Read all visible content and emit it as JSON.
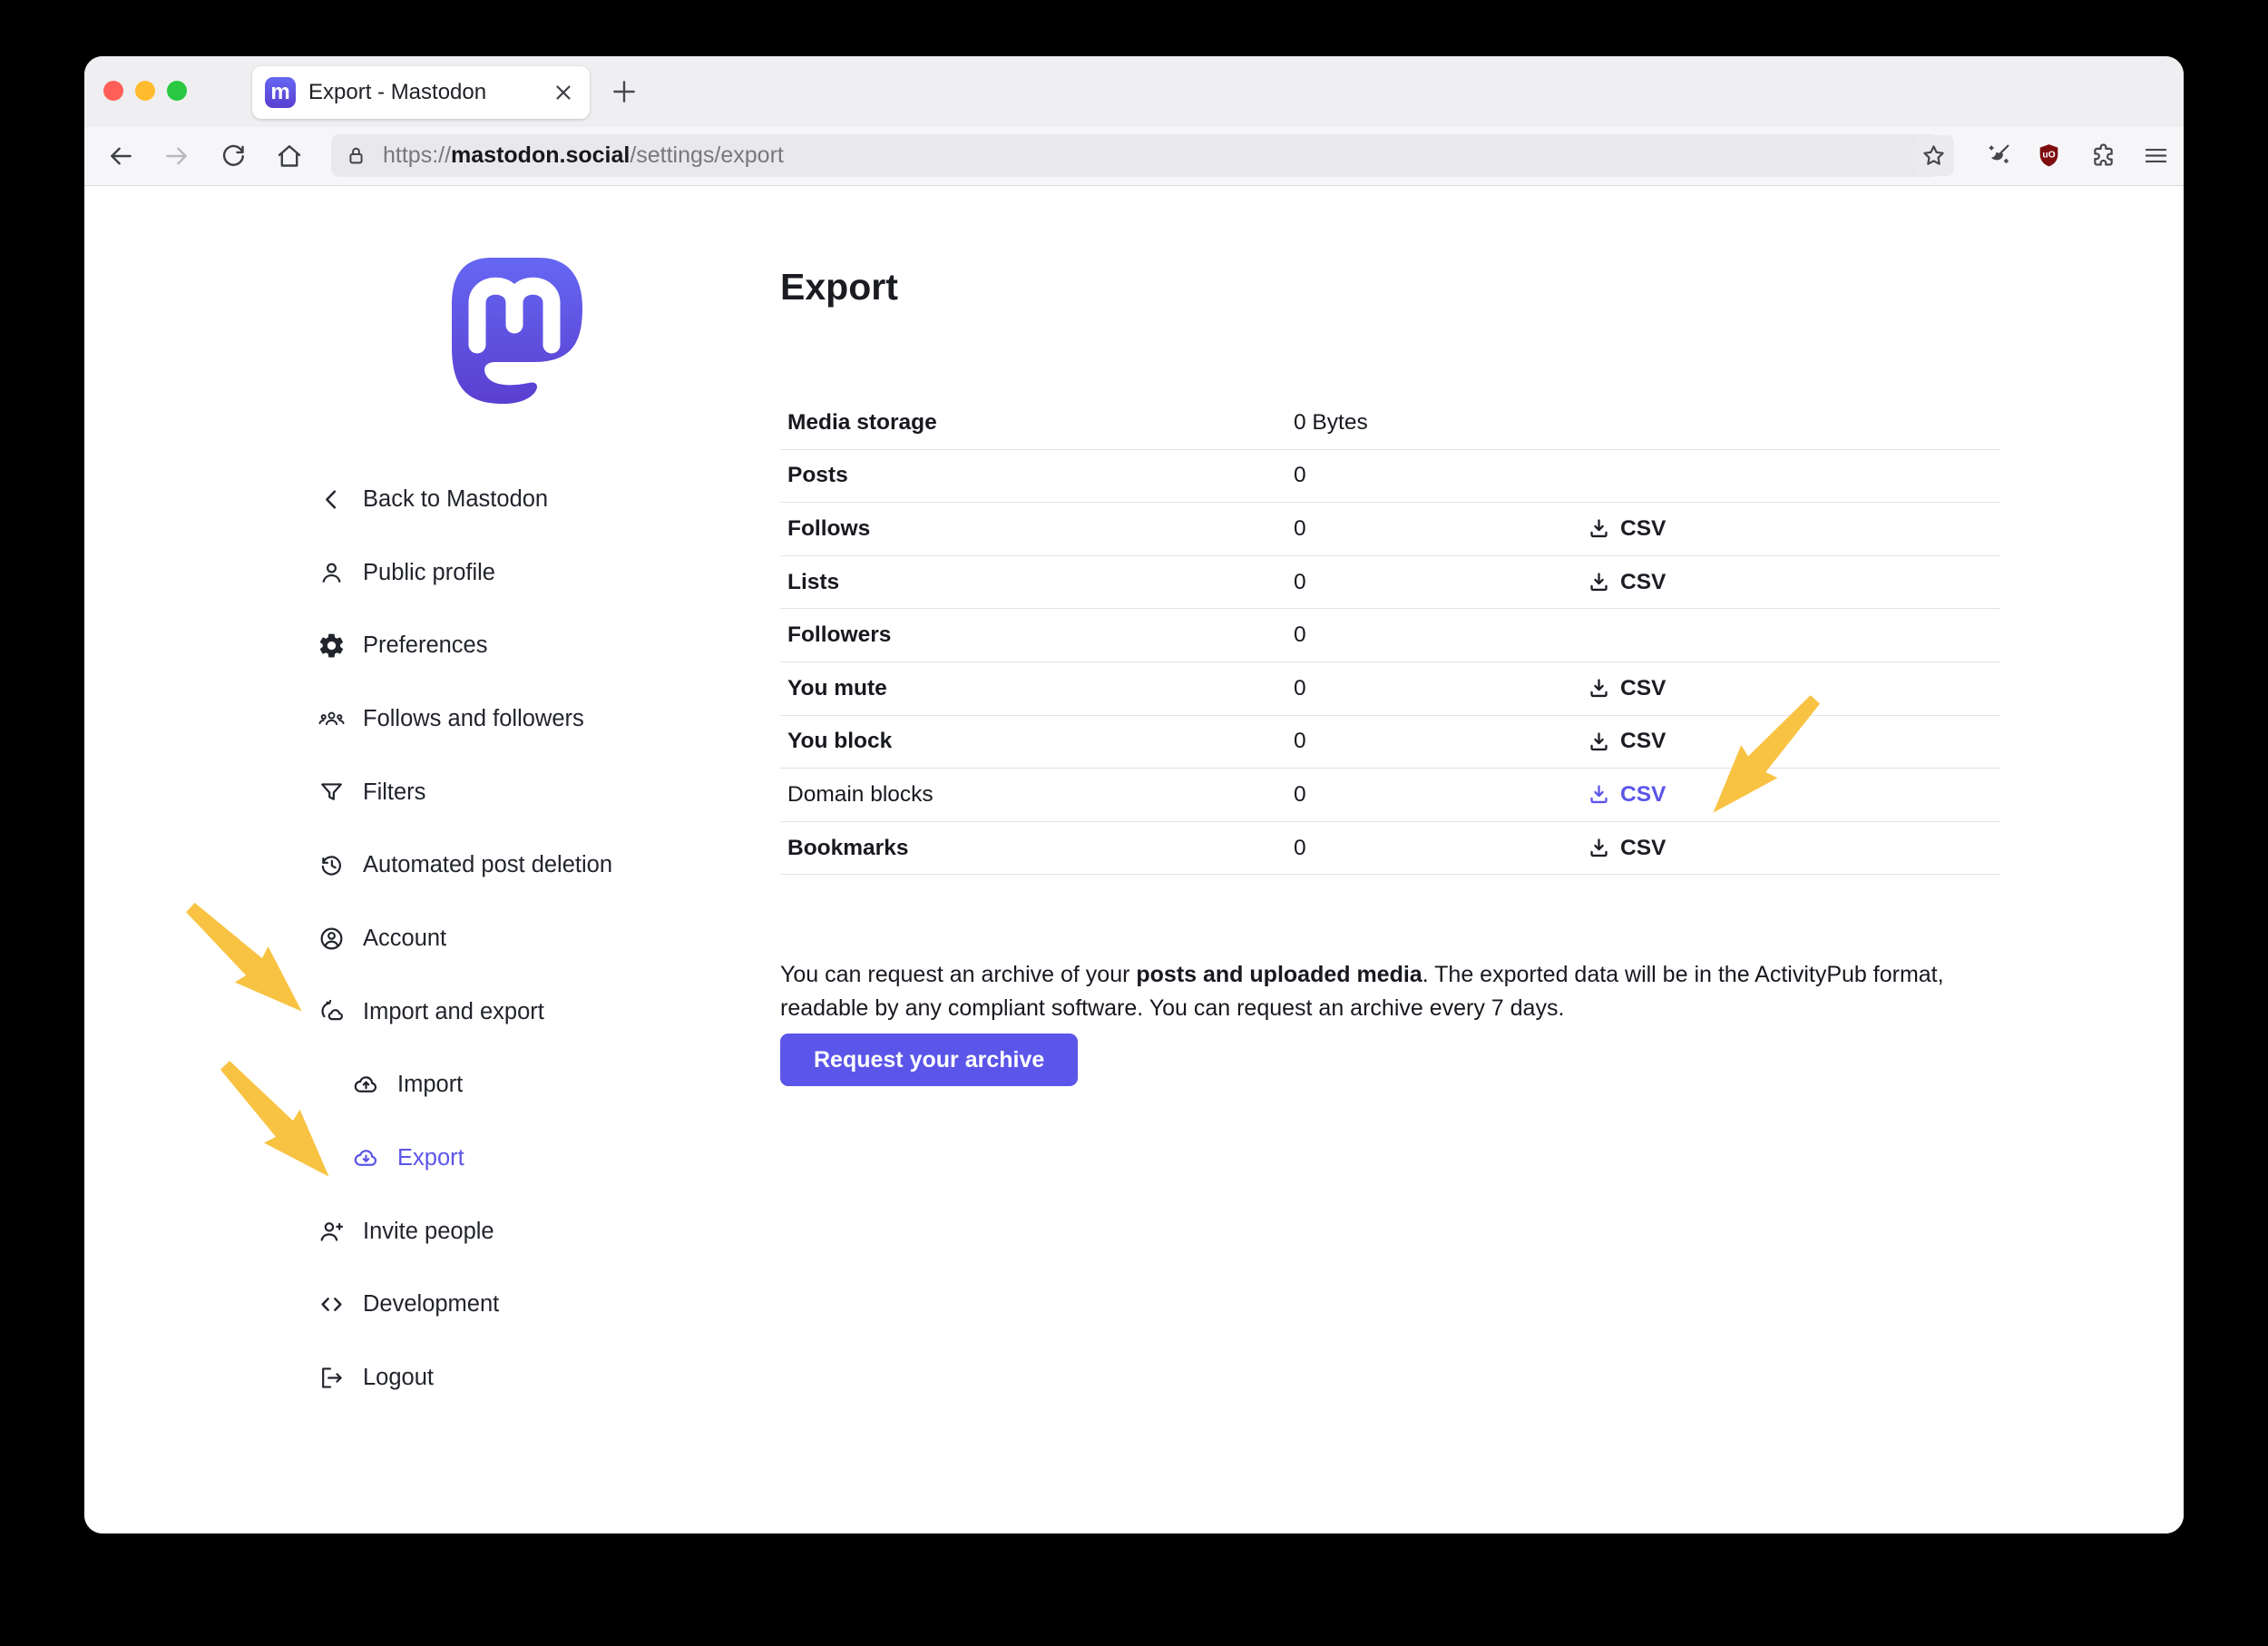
{
  "colors": {
    "accent": "#5b55e9",
    "arrow": "#f8c342",
    "logo_top": "#6567f2",
    "logo_bottom": "#5a3fd1",
    "ublock_red": "#7e0d10",
    "traffic_red": "#ff5f57",
    "traffic_yellow": "#febc2e",
    "traffic_green": "#28c840"
  },
  "browser": {
    "tab_title": "Export - Mastodon",
    "url": {
      "protocol": "https://",
      "domain": "mastodon.social",
      "path": "/settings/export"
    }
  },
  "sidebar": {
    "items": [
      {
        "label": "Back to Mastodon",
        "icon": "chevron-left",
        "name": "back-to-mastodon"
      },
      {
        "label": "Public profile",
        "icon": "person",
        "name": "public-profile"
      },
      {
        "label": "Preferences",
        "icon": "gear",
        "name": "preferences"
      },
      {
        "label": "Follows and followers",
        "icon": "people",
        "name": "follows-and-followers"
      },
      {
        "label": "Filters",
        "icon": "funnel",
        "name": "filters"
      },
      {
        "label": "Automated post deletion",
        "icon": "history",
        "name": "automated-post-deletion"
      },
      {
        "label": "Account",
        "icon": "account-circle",
        "name": "account"
      },
      {
        "label": "Import and export",
        "icon": "import-export",
        "name": "import-and-export"
      },
      {
        "label": "Import",
        "icon": "cloud-upload",
        "name": "import",
        "sub": true
      },
      {
        "label": "Export",
        "icon": "cloud-download",
        "name": "export",
        "sub": true,
        "active": true
      },
      {
        "label": "Invite people",
        "icon": "person-add",
        "name": "invite-people"
      },
      {
        "label": "Development",
        "icon": "code",
        "name": "development"
      },
      {
        "label": "Logout",
        "icon": "logout",
        "name": "logout"
      }
    ]
  },
  "main": {
    "title": "Export",
    "csv_label": "CSV",
    "table": [
      {
        "label": "Media storage",
        "value": "0 Bytes",
        "csv": false
      },
      {
        "label": "Posts",
        "value": "0",
        "csv": false
      },
      {
        "label": "Follows",
        "value": "0",
        "csv": true
      },
      {
        "label": "Lists",
        "value": "0",
        "csv": true
      },
      {
        "label": "Followers",
        "value": "0",
        "csv": false
      },
      {
        "label": "You mute",
        "value": "0",
        "csv": true
      },
      {
        "label": "You block",
        "value": "0",
        "csv": true
      },
      {
        "label": "Domain blocks",
        "value": "0",
        "csv": true,
        "highlight": true
      },
      {
        "label": "Bookmarks",
        "value": "0",
        "csv": true
      }
    ],
    "description": {
      "before": "You can request an archive of your ",
      "bold": "posts and uploaded media",
      "after": ". The exported data will be in the ActivityPub format, readable by any compliant software. You can request an archive every 7 days."
    },
    "archive_button": "Request your archive"
  }
}
